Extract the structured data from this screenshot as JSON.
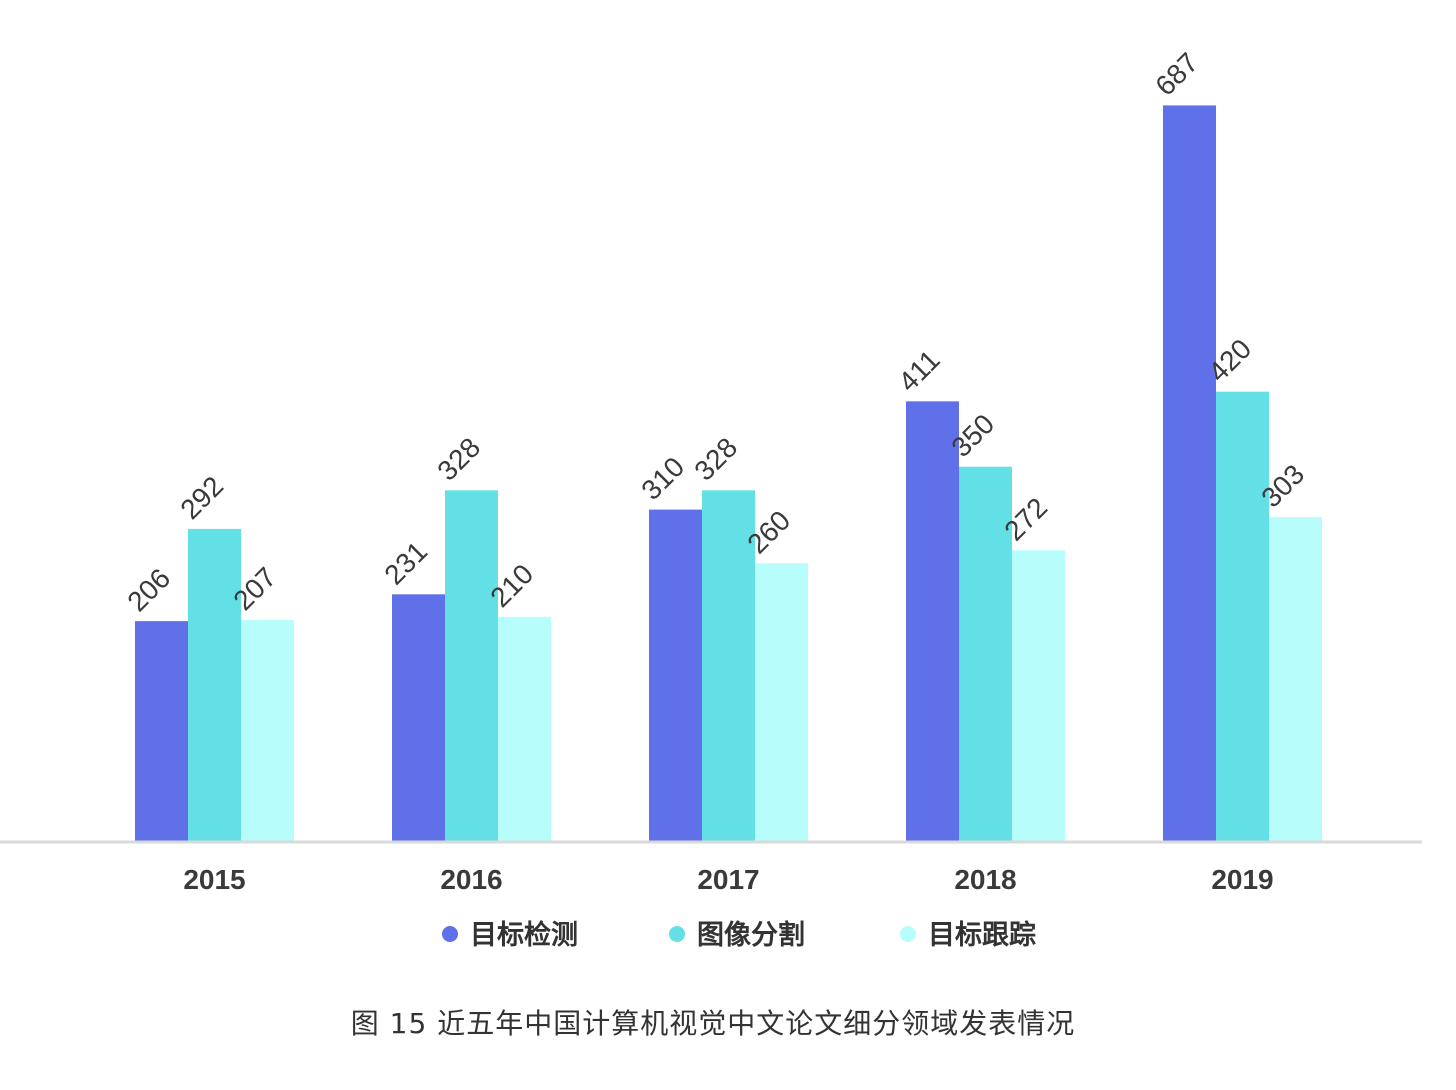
{
  "chart_data": {
    "type": "bar",
    "categories": [
      "2015",
      "2016",
      "2017",
      "2018",
      "2019"
    ],
    "series": [
      {
        "name": "目标检测",
        "color": "#6070e8",
        "values": [
          206,
          231,
          310,
          411,
          687
        ]
      },
      {
        "name": "图像分割",
        "color": "#62e0e5",
        "values": [
          292,
          328,
          328,
          350,
          420
        ]
      },
      {
        "name": "目标跟踪",
        "color": "#b6fdfc",
        "values": [
          207,
          210,
          260,
          272,
          303
        ]
      }
    ],
    "ylim": [
      0,
      700
    ],
    "grid": false,
    "legend_position": "bottom-center",
    "data_labels": "rotated",
    "baseline_color": "#d9d9d9"
  },
  "caption": "图 15 近五年中国计算机视觉中文论文细分领域发表情况"
}
